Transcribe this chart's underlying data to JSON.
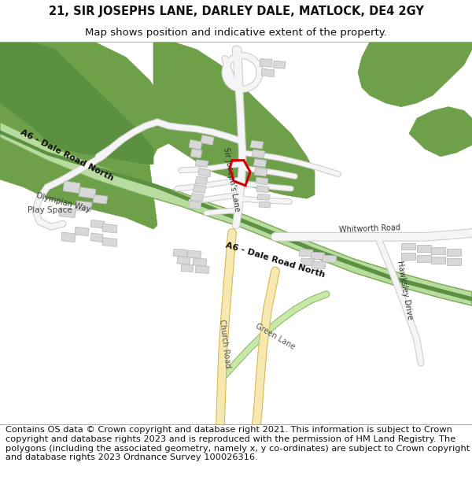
{
  "title_line1": "21, SIR JOSEPHS LANE, DARLEY DALE, MATLOCK, DE4 2GY",
  "title_line2": "Map shows position and indicative extent of the property.",
  "footer_text": "Contains OS data © Crown copyright and database right 2021. This information is subject to Crown copyright and database rights 2023 and is reproduced with the permission of HM Land Registry. The polygons (including the associated geometry, namely x, y co-ordinates) are subject to Crown copyright and database rights 2023 Ordnance Survey 100026316.",
  "title_fontsize": 10.5,
  "subtitle_fontsize": 9.5,
  "footer_fontsize": 8.2,
  "fig_width": 6.0,
  "fig_height": 6.25,
  "bg": "#ffffff",
  "park_color": "#6da048",
  "park_color2": "#5a9040",
  "a6_fill": "#b8dca0",
  "a6_outline": "#78aa50",
  "road_white_fill": "#f5f5f5",
  "road_white_edge": "#cccccc",
  "road_yellow_fill": "#f5e8b0",
  "road_yellow_edge": "#d4b84a",
  "road_green_fill": "#c8e8a8",
  "road_green_edge": "#88bb60",
  "building_fill": "#d8d8d8",
  "building_edge": "#bbbbbb",
  "plot_color": "#cc0000"
}
